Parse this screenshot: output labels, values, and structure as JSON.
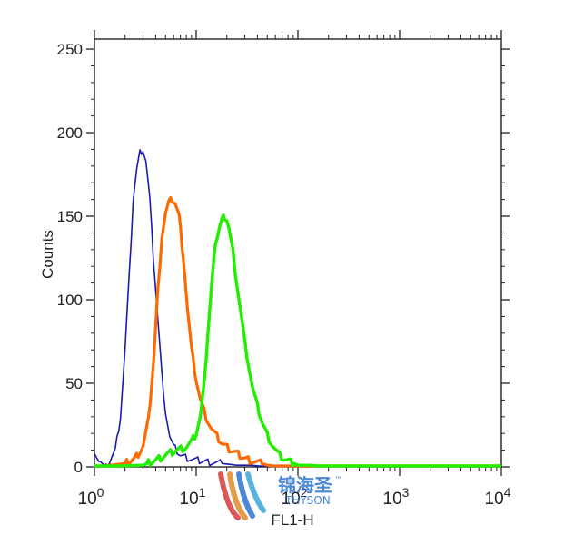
{
  "chart_data": {
    "type": "line",
    "title": "",
    "xlabel": "FL1-H",
    "ylabel": "Counts",
    "x_scale": "log",
    "xlim": [
      1,
      10000
    ],
    "ylim": [
      0,
      256
    ],
    "x_ticks": [
      {
        "value": 1,
        "base": "10",
        "exp": "0"
      },
      {
        "value": 10,
        "base": "10",
        "exp": "1"
      },
      {
        "value": 100,
        "base": "10",
        "exp": "2"
      },
      {
        "value": 1000,
        "base": "10",
        "exp": "3"
      },
      {
        "value": 10000,
        "base": "10",
        "exp": "4"
      }
    ],
    "y_ticks": [
      "0",
      "50",
      "100",
      "150",
      "200",
      "250"
    ],
    "grid": false,
    "legend": "none",
    "series": [
      {
        "color": "#1a1ab0",
        "points": [
          [
            1,
            10
          ],
          [
            1.1,
            4
          ],
          [
            1.25,
            1
          ],
          [
            1.4,
            3
          ],
          [
            1.6,
            10
          ],
          [
            1.8,
            30
          ],
          [
            2.0,
            70
          ],
          [
            2.2,
            115
          ],
          [
            2.4,
            160
          ],
          [
            2.6,
            178
          ],
          [
            2.8,
            188
          ],
          [
            3.0,
            190
          ],
          [
            3.2,
            183
          ],
          [
            3.5,
            160
          ],
          [
            3.8,
            125
          ],
          [
            4.2,
            88
          ],
          [
            4.6,
            55
          ],
          [
            5.0,
            33
          ],
          [
            5.5,
            18
          ],
          [
            6.0,
            12
          ],
          [
            7.0,
            7
          ],
          [
            8.5,
            5
          ],
          [
            10,
            4
          ],
          [
            13,
            3
          ],
          [
            18,
            2
          ],
          [
            25,
            1
          ],
          [
            35,
            1
          ],
          [
            50,
            0
          ],
          [
            100,
            0
          ],
          [
            1000,
            0
          ],
          [
            10000,
            0
          ]
        ]
      },
      {
        "color": "#ff6a00",
        "points": [
          [
            1,
            0
          ],
          [
            2,
            2
          ],
          [
            2.5,
            5
          ],
          [
            3,
            12
          ],
          [
            3.4,
            28
          ],
          [
            3.8,
            62
          ],
          [
            4.2,
            105
          ],
          [
            4.6,
            138
          ],
          [
            5.0,
            152
          ],
          [
            5.4,
            158
          ],
          [
            5.8,
            160
          ],
          [
            6.2,
            158
          ],
          [
            6.8,
            150
          ],
          [
            7.5,
            125
          ],
          [
            8.2,
            95
          ],
          [
            9.0,
            70
          ],
          [
            10,
            52
          ],
          [
            11,
            40
          ],
          [
            12.5,
            30
          ],
          [
            14,
            23
          ],
          [
            16,
            18
          ],
          [
            18,
            14
          ],
          [
            21,
            11
          ],
          [
            25,
            8
          ],
          [
            30,
            5
          ],
          [
            38,
            3
          ],
          [
            50,
            1
          ],
          [
            70,
            0
          ],
          [
            100,
            0
          ],
          [
            10000,
            0
          ]
        ]
      },
      {
        "color": "#22ee00",
        "points": [
          [
            1,
            0
          ],
          [
            3,
            1
          ],
          [
            4,
            4
          ],
          [
            5,
            7
          ],
          [
            6.5,
            10
          ],
          [
            8,
            12
          ],
          [
            9,
            15
          ],
          [
            10,
            20
          ],
          [
            11,
            30
          ],
          [
            12,
            50
          ],
          [
            13,
            80
          ],
          [
            14,
            105
          ],
          [
            15,
            125
          ],
          [
            16,
            138
          ],
          [
            17,
            144
          ],
          [
            18,
            148
          ],
          [
            19,
            150
          ],
          [
            20,
            148
          ],
          [
            21,
            142
          ],
          [
            23,
            128
          ],
          [
            25,
            110
          ],
          [
            27.5,
            92
          ],
          [
            30,
            75
          ],
          [
            33,
            60
          ],
          [
            36,
            47
          ],
          [
            40,
            36
          ],
          [
            45,
            26
          ],
          [
            50,
            19
          ],
          [
            56,
            13
          ],
          [
            63,
            8
          ],
          [
            72,
            5
          ],
          [
            85,
            3
          ],
          [
            100,
            1
          ],
          [
            130,
            1
          ],
          [
            200,
            0
          ],
          [
            1000,
            0
          ],
          [
            10000,
            0
          ]
        ]
      }
    ]
  },
  "watermark": {
    "brand_cn": "锦海圣",
    "brand_en": "THYSON",
    "trademark": "™",
    "colors": [
      "#d63b3b",
      "#e0892a",
      "#2f74d0",
      "#3aa6d8"
    ]
  }
}
